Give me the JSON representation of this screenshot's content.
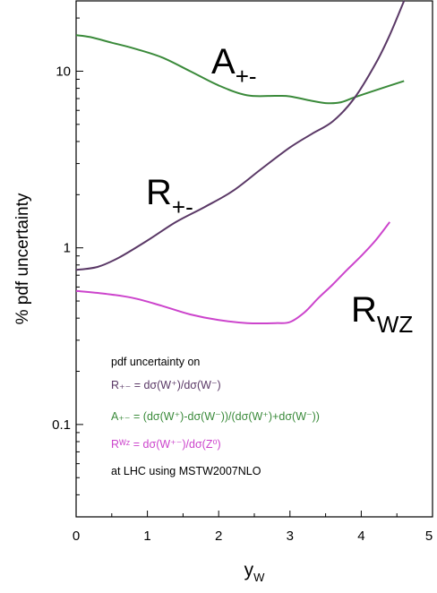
{
  "chart_data": {
    "type": "line",
    "xlabel_main": "y",
    "xlabel_sub": "W",
    "ylabel": "% pdf uncertainty",
    "xlim": [
      0,
      5
    ],
    "ylim": [
      0.03,
      25
    ],
    "yscale": "log",
    "grid": false,
    "xticks": [
      0,
      1,
      2,
      3,
      4,
      5
    ],
    "yticks": [
      {
        "value": 10,
        "label": "10"
      },
      {
        "value": 1,
        "label": "1"
      },
      {
        "value": 0.1,
        "label": "0.1"
      }
    ],
    "series": [
      {
        "name_main": "A",
        "name_sub": "+-",
        "color": "#3a8a3a",
        "x": [
          0,
          0.2,
          0.5,
          0.8,
          1.2,
          1.6,
          2.0,
          2.4,
          2.8,
          3.0,
          3.3,
          3.5,
          3.7,
          3.9,
          4.2,
          4.6
        ],
        "y": [
          16,
          15.6,
          14.5,
          13.5,
          12,
          10,
          8.3,
          7.3,
          7.25,
          7.2,
          6.8,
          6.6,
          6.65,
          7.1,
          7.8,
          8.8
        ]
      },
      {
        "name_main": "R",
        "name_sub": "+-",
        "color": "#5a3866",
        "x": [
          0,
          0.3,
          0.6,
          1.0,
          1.4,
          1.8,
          2.2,
          2.6,
          3.0,
          3.3,
          3.6,
          3.9,
          4.2,
          4.4,
          4.6
        ],
        "y": [
          0.75,
          0.78,
          0.88,
          1.1,
          1.4,
          1.7,
          2.1,
          2.8,
          3.7,
          4.4,
          5.2,
          7.0,
          11,
          16,
          25
        ]
      },
      {
        "name_main": "R",
        "name_sub": "WZ",
        "color": "#cc44cc",
        "x": [
          0,
          0.4,
          0.8,
          1.2,
          1.6,
          2.0,
          2.4,
          2.8,
          3.0,
          3.2,
          3.4,
          3.6,
          3.8,
          4.0,
          4.2,
          4.4
        ],
        "y": [
          0.57,
          0.55,
          0.52,
          0.47,
          0.42,
          0.39,
          0.375,
          0.375,
          0.38,
          0.43,
          0.52,
          0.62,
          0.75,
          0.9,
          1.1,
          1.4
        ]
      }
    ],
    "legend": {
      "lines": [
        {
          "text": "pdf uncertainty on",
          "color": "#000000"
        },
        {
          "text": "R₊₋ = dσ(W⁺)/dσ(W⁻)",
          "color": "#5a3866"
        },
        {
          "text": "A₊₋ = (dσ(W⁺)-dσ(W⁻))/(dσ(W⁺)+dσ(W⁻))",
          "color": "#3a8a3a"
        },
        {
          "text": "Rᵂᶻ = dσ(W⁺⁻)/dσ(Z⁰)",
          "color": "#cc44cc"
        },
        {
          "text": "at LHC using MSTW2007NLO",
          "color": "#000000"
        }
      ]
    }
  }
}
